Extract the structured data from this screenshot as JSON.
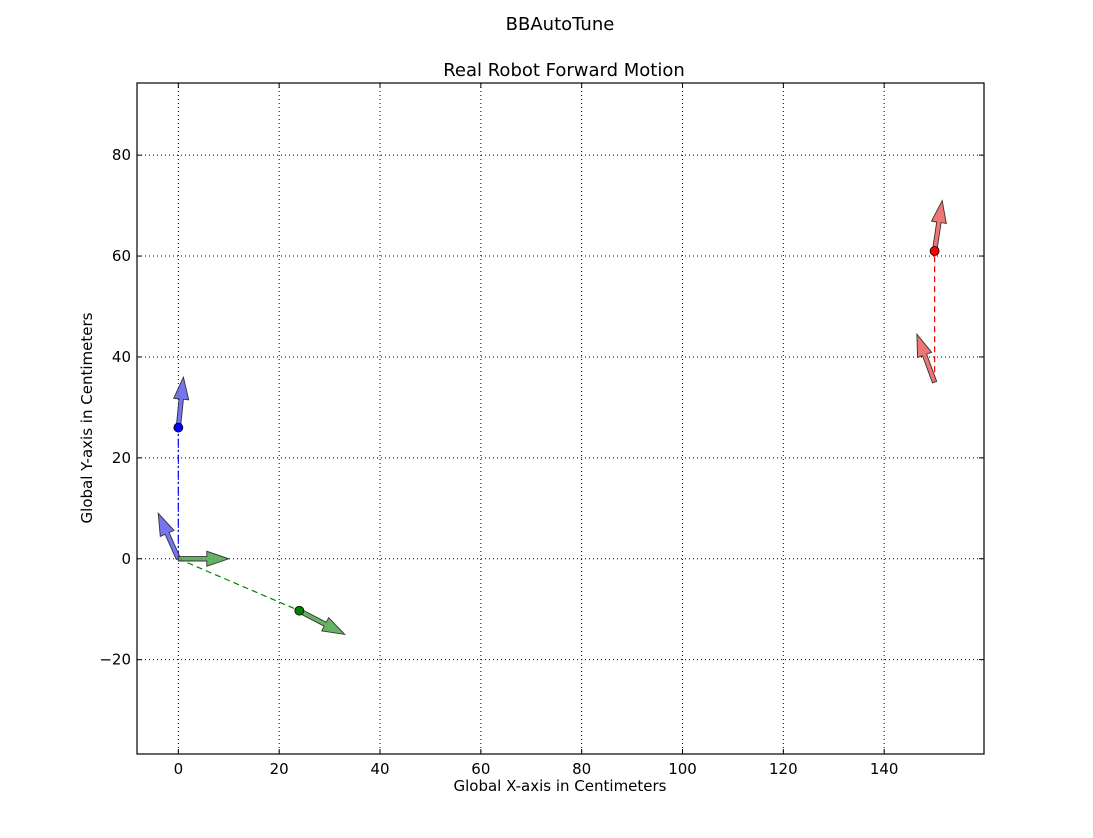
{
  "figure": {
    "suptitle": "BBAutoTune"
  },
  "chart_data": {
    "type": "scatter",
    "title": "Real Robot Forward Motion",
    "xlabel": "Global X-axis in Centimeters",
    "ylabel": "Global Y-axis in Centimeters",
    "xlim": [
      -8.2,
      159.8
    ],
    "ylim": [
      -38.7,
      94.3
    ],
    "x_ticks": [
      0,
      20,
      40,
      60,
      80,
      100,
      120,
      140
    ],
    "x_tick_labels": [
      "0",
      "20",
      "40",
      "60",
      "80",
      "100",
      "120",
      "140"
    ],
    "y_ticks": [
      -20,
      0,
      20,
      40,
      60,
      80
    ],
    "y_tick_labels": [
      "−20",
      "0",
      "20",
      "40",
      "60",
      "80"
    ],
    "grid": true,
    "series": [
      {
        "color": "#0000ff",
        "arrow_color": "#6666ee",
        "line_style": "dashdot",
        "path": [
          [
            0,
            0
          ],
          [
            0,
            26
          ]
        ],
        "point": [
          0,
          26
        ],
        "arrows": [
          {
            "from": [
              0,
              0
            ],
            "to": [
              -4,
              9
            ]
          },
          {
            "from": [
              0,
              26
            ],
            "to": [
              1,
              36
            ]
          }
        ]
      },
      {
        "color": "#008000",
        "arrow_color": "#55aa55",
        "line_style": "dashed",
        "path": [
          [
            0,
            0
          ],
          [
            24,
            -10.3
          ]
        ],
        "point": [
          24,
          -10.3
        ],
        "arrows": [
          {
            "from": [
              0,
              0
            ],
            "to": [
              10,
              0
            ]
          },
          {
            "from": [
              24,
              -10.3
            ],
            "to": [
              33,
              -15
            ]
          }
        ]
      },
      {
        "color": "#ff0000",
        "arrow_color": "#ee6666",
        "line_style": "dashed",
        "path": [
          [
            150,
            35
          ],
          [
            150,
            61
          ]
        ],
        "point": [
          150,
          61
        ],
        "arrows": [
          {
            "from": [
              150,
              35
            ],
            "to": [
              146.5,
              44.5
            ]
          },
          {
            "from": [
              150,
              61
            ],
            "to": [
              151.5,
              71
            ]
          }
        ]
      }
    ]
  }
}
